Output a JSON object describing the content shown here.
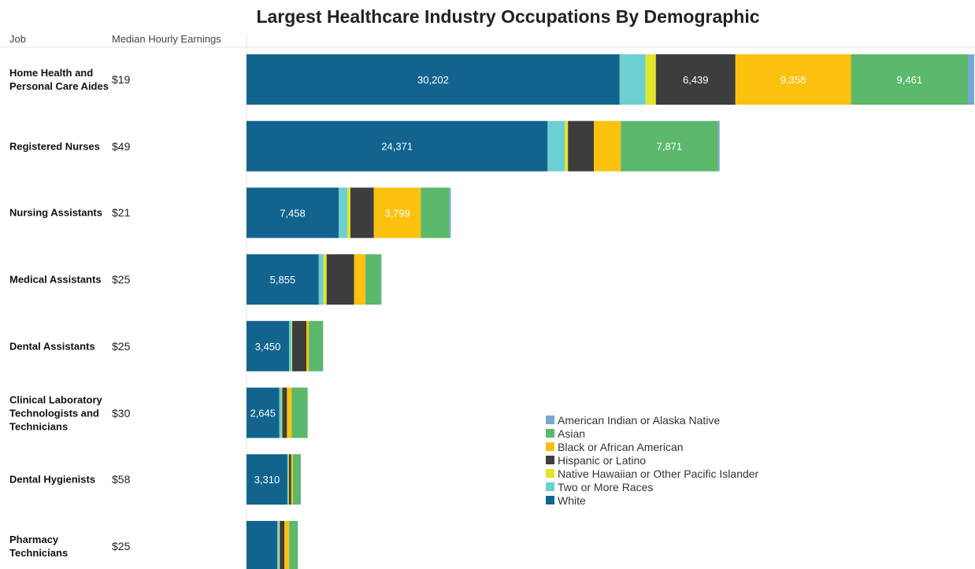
{
  "chart_data": {
    "type": "stacked-bar-horizontal",
    "title": "Largest Healthcare Industry Occupations By Demographic",
    "column_headers": [
      "Job",
      "Median Hourly Earnings"
    ],
    "categories": [
      "Home Health and Personal Care Aides",
      "Registered Nurses",
      "Nursing Assistants",
      "Medical Assistants",
      "Dental Assistants",
      "Clinical Laboratory Technologists and Technicians",
      "Dental Hygienists",
      "Pharmacy Technicians"
    ],
    "earnings": [
      "$19",
      "$49",
      "$21",
      "$25",
      "$25",
      "$30",
      "$58",
      "$25"
    ],
    "series": [
      {
        "name": "White",
        "color": "#12648f",
        "values": [
          30202,
          24371,
          7458,
          5855,
          3450,
          2645,
          3310,
          2500
        ],
        "value_labels": [
          "30,202",
          "24,371",
          "7,458",
          "5,855",
          "3,450",
          "2,645",
          "3,310",
          null
        ]
      },
      {
        "name": "Two or More Races",
        "color": "#6dd0d0",
        "values": [
          2100,
          1400,
          700,
          380,
          190,
          190,
          60,
          130
        ],
        "value_labels": [
          null,
          null,
          null,
          null,
          null,
          null,
          null,
          null
        ]
      },
      {
        "name": "Native Hawaiian or Other Pacific Islander",
        "color": "#e3e52a",
        "values": [
          830,
          250,
          250,
          250,
          60,
          60,
          60,
          60
        ],
        "value_labels": [
          null,
          null,
          null,
          null,
          null,
          null,
          null,
          null
        ]
      },
      {
        "name": "Hispanic or Latino",
        "color": "#3d3d3d",
        "values": [
          6439,
          2100,
          1900,
          2230,
          1150,
          380,
          190,
          380
        ],
        "value_labels": [
          "6,439",
          null,
          null,
          null,
          null,
          null,
          null,
          null
        ]
      },
      {
        "name": "Black or African American",
        "color": "#fcc10e",
        "values": [
          9358,
          2170,
          3799,
          900,
          190,
          380,
          130,
          380
        ],
        "value_labels": [
          "9,358",
          null,
          "3,799",
          null,
          null,
          null,
          null,
          null
        ]
      },
      {
        "name": "Asian",
        "color": "#5cb86b",
        "values": [
          9461,
          7871,
          2300,
          1280,
          1150,
          1280,
          640,
          700
        ],
        "value_labels": [
          "9,461",
          "7,871",
          null,
          null,
          null,
          null,
          null,
          null
        ]
      },
      {
        "name": "American Indian or Alaska Native",
        "color": "#76a8d2",
        "values": [
          510,
          130,
          130,
          30,
          20,
          20,
          10,
          10
        ],
        "value_labels": [
          null,
          null,
          null,
          null,
          null,
          null,
          null,
          null
        ]
      }
    ]
  }
}
